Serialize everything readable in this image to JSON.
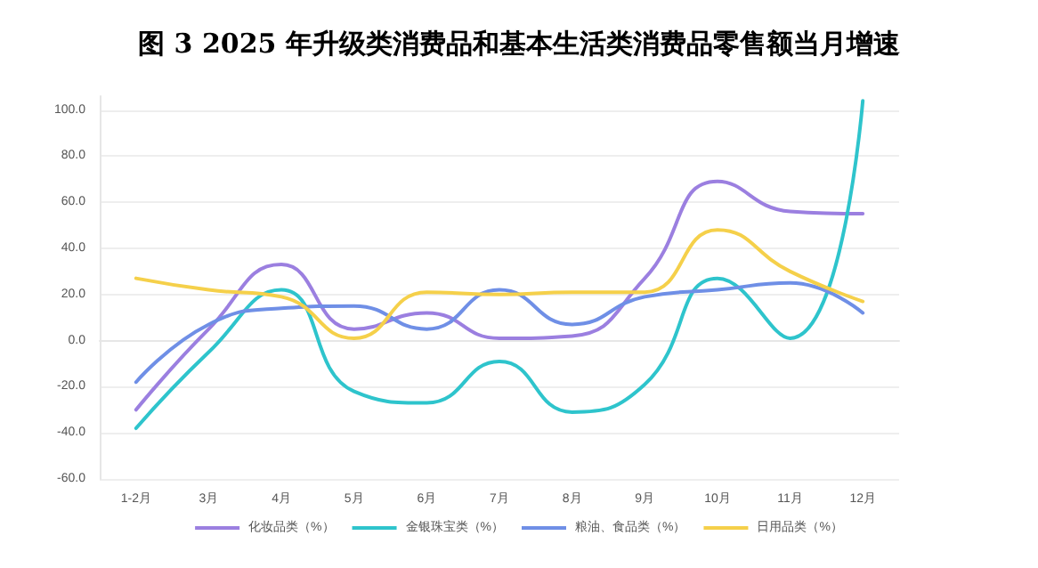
{
  "chart_data": {
    "type": "line",
    "title": "图 3 2025 年升级类消费品和基本生活类消费品零售额当月增速",
    "categories": [
      "1-2月",
      "3月",
      "4月",
      "5月",
      "6月",
      "7月",
      "8月",
      "9月",
      "10月",
      "11月",
      "12月"
    ],
    "series": [
      {
        "name": "化妆品类（%）",
        "color": "#9b7fe0",
        "values": [
          -30,
          5,
          33,
          5,
          12,
          1,
          2,
          27,
          69,
          56,
          55
        ]
      },
      {
        "name": "金银珠宝类（%）",
        "color": "#2ec4cc",
        "values": [
          -38,
          -5,
          22,
          -22,
          -27,
          -9,
          -31,
          -19,
          27,
          1,
          104
        ]
      },
      {
        "name": "粮油、食品类（%）",
        "color": "#6f8fe6",
        "values": [
          -18,
          7,
          14,
          15,
          5,
          22,
          7,
          19,
          22,
          25,
          12
        ]
      },
      {
        "name": "日用品类（%）",
        "color": "#f5d04a",
        "values": [
          27,
          22,
          19,
          1,
          21,
          20,
          21,
          21,
          48,
          30,
          17
        ]
      }
    ],
    "ylim": [
      -60,
      106
    ],
    "yticks": [
      {
        "value": -60,
        "label": "-60.0"
      },
      {
        "value": -40,
        "label": "-40.0"
      },
      {
        "value": -20,
        "label": "-20.0"
      },
      {
        "value": 0,
        "label": "0.0"
      },
      {
        "value": 20,
        "label": "20.0"
      },
      {
        "value": 40,
        "label": "40.0"
      },
      {
        "value": 60,
        "label": "60.0"
      },
      {
        "value": 80,
        "label": "80.0"
      },
      {
        "value": 100,
        "label": "100.0"
      }
    ],
    "grid": "y",
    "legend": "bottom",
    "marker": "none",
    "line_style": "solid"
  }
}
